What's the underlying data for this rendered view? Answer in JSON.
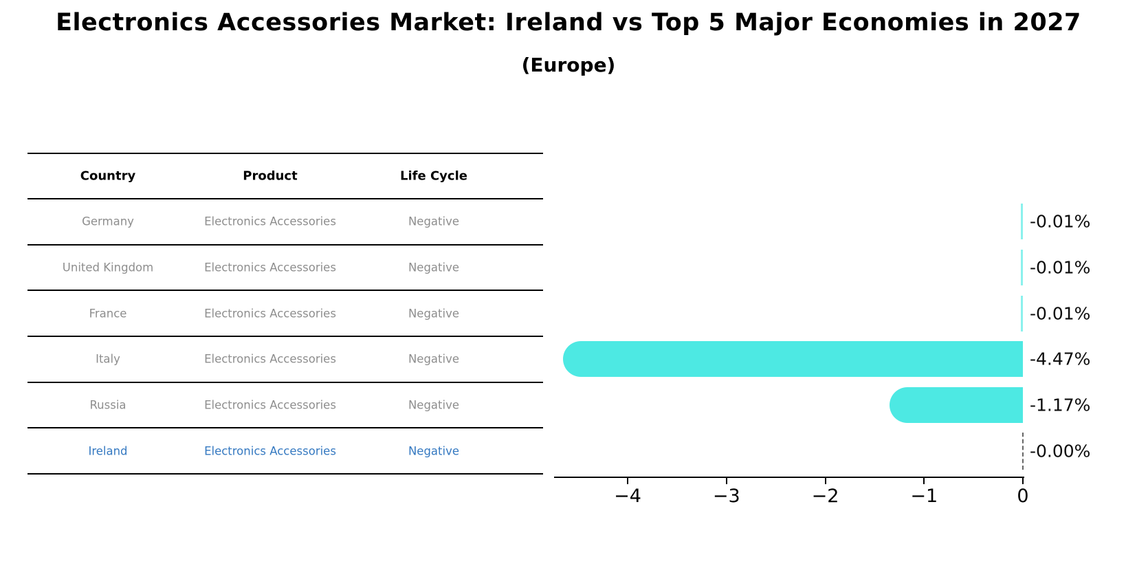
{
  "title": "Electronics Accessories Market: Ireland vs Top 5 Major Economies in 2027",
  "subtitle": "(Europe)",
  "table": {
    "headers": [
      "Country",
      "Product",
      "Life Cycle"
    ],
    "rows": [
      {
        "country": "Germany",
        "product": "Electronics Accessories",
        "life_cycle": "Negative",
        "highlight": false
      },
      {
        "country": "United Kingdom",
        "product": "Electronics Accessories",
        "life_cycle": "Negative",
        "highlight": false
      },
      {
        "country": "France",
        "product": "Electronics Accessories",
        "life_cycle": "Negative",
        "highlight": false
      },
      {
        "country": "Italy",
        "product": "Electronics Accessories",
        "life_cycle": "Negative",
        "highlight": false
      },
      {
        "country": "Russia",
        "product": "Electronics Accessories",
        "life_cycle": "Negative",
        "highlight": false
      },
      {
        "country": "Ireland",
        "product": "Electronics Accessories",
        "life_cycle": "Negative",
        "highlight": true
      }
    ]
  },
  "chart_data": {
    "type": "bar",
    "orientation": "horizontal",
    "title": "Electronics Accessories Market: Ireland vs Top 5 Major Economies in 2027 (Europe)",
    "categories": [
      "Germany",
      "United Kingdom",
      "France",
      "Italy",
      "Russia",
      "Ireland"
    ],
    "values": [
      -0.01,
      -0.01,
      -0.01,
      -4.47,
      -1.17,
      -0.0
    ],
    "value_labels": [
      "-0.01%",
      "-0.01%",
      "-0.01%",
      "-4.47%",
      "-1.17%",
      "-0.00%"
    ],
    "xlabel": "",
    "ylabel": "",
    "xlim": [
      -4.75,
      0
    ],
    "grid": false,
    "legend": false,
    "bar_color": "#4DE9E3",
    "highlight_category": "Ireland",
    "highlight_style": "dashed-line-at-zero",
    "x_ticks": [
      {
        "value": -4,
        "label": "−4"
      },
      {
        "value": -3,
        "label": "−3"
      },
      {
        "value": -2,
        "label": "−2"
      },
      {
        "value": -1,
        "label": "−1"
      },
      {
        "value": 0,
        "label": "0"
      }
    ]
  },
  "colors": {
    "background": "#ffffff",
    "bar": "#4DE9E3",
    "table_text": "#8e8e8e",
    "highlight_text": "#3579c1",
    "header_text": "#000000",
    "axis": "#000000",
    "dashed_line": "#666666"
  }
}
